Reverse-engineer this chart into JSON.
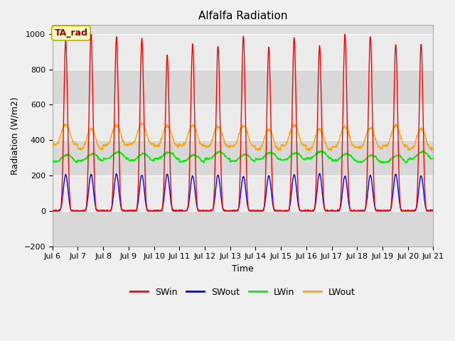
{
  "title": "Alfalfa Radiation",
  "ylabel": "Radiation (W/m2)",
  "xlabel": "Time",
  "annotation": "TA_rad",
  "ylim": [
    -200,
    1050
  ],
  "n_days": 15,
  "x_tick_labels": [
    "Jul 6",
    "Jul 7",
    "Jul 8",
    "Jul 9",
    "Jul 10",
    "Jul 11",
    "Jul 12",
    "Jul 13",
    "Jul 14",
    "Jul 15",
    "Jul 16",
    "Jul 17",
    "Jul 18",
    "Jul 19",
    "Jul 20",
    "Jul 21"
  ],
  "colors": {
    "SWin": "#ff0000",
    "SWout": "#0000ff",
    "LWin": "#00ee00",
    "LWout": "#ffa500"
  },
  "fig_bg_color": "#f0f0f0",
  "plot_bg_color": "#e0e0e0",
  "band_light": "#ebebeb",
  "band_dark": "#d8d8d8",
  "grid_color": "#ffffff",
  "annotation_box_color": "#ffffcc",
  "annotation_border_color": "#bbaa00",
  "annotation_text_color": "#990000",
  "title_fontsize": 11,
  "label_fontsize": 9,
  "tick_fontsize": 8,
  "legend_fontsize": 9
}
